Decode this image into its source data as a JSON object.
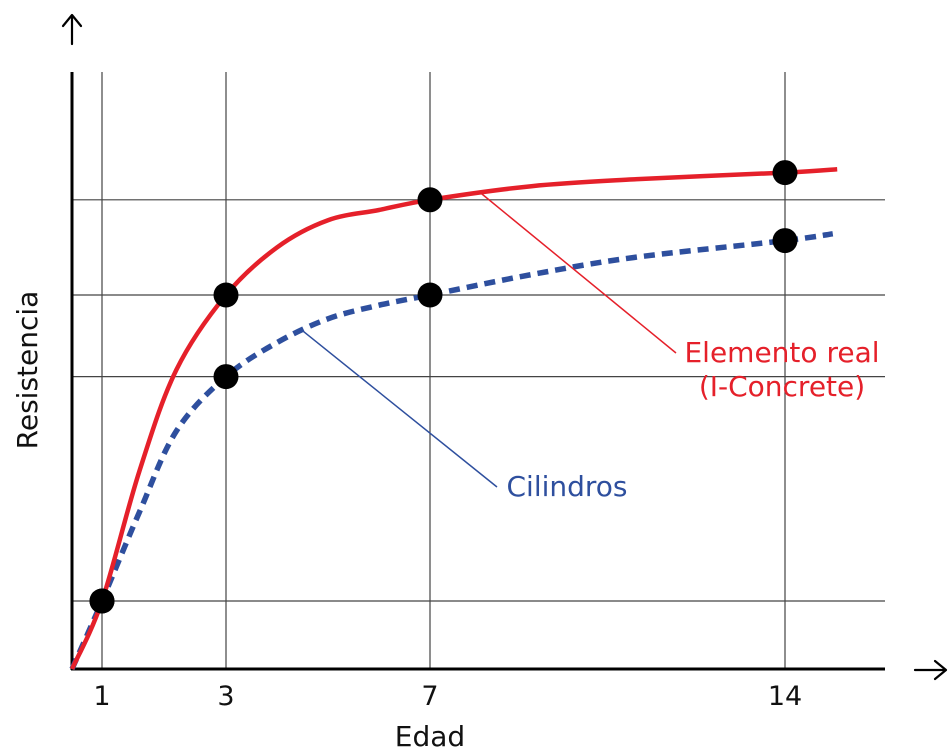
{
  "chart_data": {
    "type": "line",
    "title": "",
    "xlabel": "Edad",
    "ylabel": "Resistencia",
    "x_ticks": [
      1,
      3,
      7,
      14
    ],
    "x_tick_labels": [
      "1",
      "3",
      "7",
      "14"
    ],
    "xlim": [
      0.4,
      16.3
    ],
    "grid": true,
    "series": [
      {
        "id": "real",
        "name": "Elemento real\n(I-Concrete)",
        "color": "#e5202a",
        "style": "solid",
        "points": [
          [
            1,
            1.0
          ],
          [
            3,
            5.5
          ],
          [
            7,
            6.9
          ],
          [
            14,
            7.3
          ]
        ],
        "curve": [
          [
            0.4,
            0
          ],
          [
            1,
            1.0
          ],
          [
            1.6,
            2.9
          ],
          [
            2.2,
            4.4
          ],
          [
            3,
            5.5
          ],
          [
            4,
            6.2
          ],
          [
            5,
            6.6
          ],
          [
            6,
            6.75
          ],
          [
            7,
            6.9
          ],
          [
            9,
            7.1
          ],
          [
            11,
            7.2
          ],
          [
            14,
            7.3
          ],
          [
            15.2,
            7.35
          ]
        ]
      },
      {
        "id": "cyl",
        "name": "Cilindros",
        "color": "#2e4f9e",
        "style": "dashed",
        "points": [
          [
            1,
            1.0
          ],
          [
            3,
            4.3
          ],
          [
            7,
            5.5
          ],
          [
            14,
            6.3
          ]
        ],
        "curve": [
          [
            0.4,
            0
          ],
          [
            1,
            1.0
          ],
          [
            1.6,
            2.3
          ],
          [
            2.2,
            3.5
          ],
          [
            3,
            4.3
          ],
          [
            4,
            4.8
          ],
          [
            5,
            5.15
          ],
          [
            6,
            5.35
          ],
          [
            7,
            5.5
          ],
          [
            9,
            5.8
          ],
          [
            11,
            6.05
          ],
          [
            14,
            6.3
          ],
          [
            15.1,
            6.4
          ]
        ]
      }
    ],
    "annotations": [
      {
        "series": "real",
        "lines": [
          "Elemento real",
          "(I-Concrete)"
        ],
        "color": "#e5202a"
      },
      {
        "series": "cyl",
        "lines": [
          "Cilindros"
        ],
        "color": "#2e4f9e"
      }
    ]
  }
}
